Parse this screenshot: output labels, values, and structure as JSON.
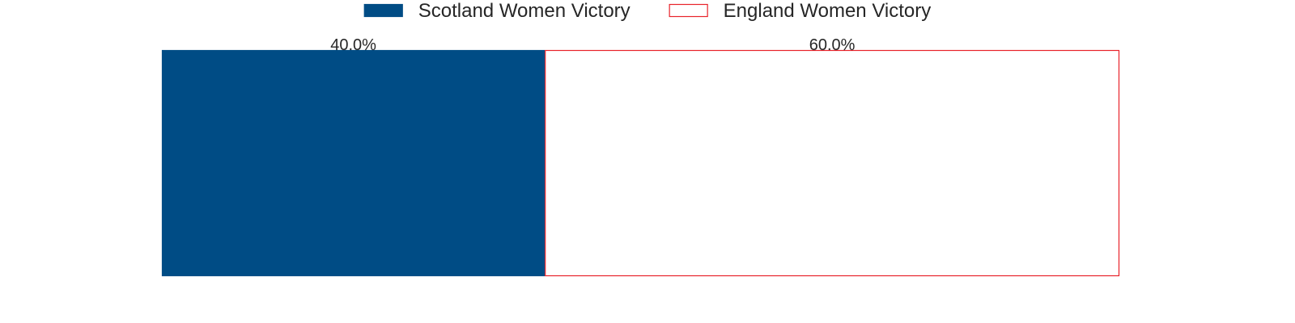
{
  "chart_data": {
    "type": "bar",
    "orientation": "horizontal-stacked",
    "title": "",
    "xlabel": "",
    "ylabel": "",
    "xlim": [
      0,
      100
    ],
    "grid": false,
    "legend_position": "top-center",
    "series": [
      {
        "name": "Scotland Women Victory",
        "value": 40.0,
        "label": "40.0%",
        "fill": "#004c85",
        "stroke": "#004c85"
      },
      {
        "name": "England Women Victory",
        "value": 60.0,
        "label": "60.0%",
        "fill": "#ffffff",
        "stroke": "#e8232a"
      }
    ]
  }
}
